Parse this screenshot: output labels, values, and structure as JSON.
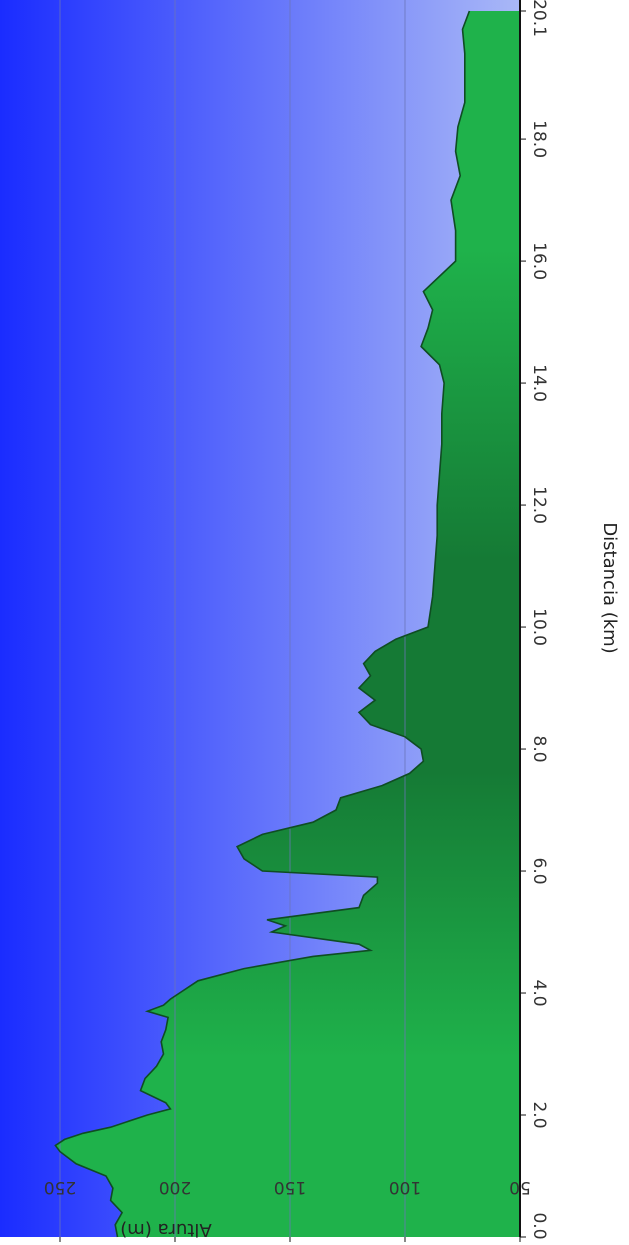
{
  "chart_data": {
    "type": "area",
    "orientation": "rotated-90-clockwise",
    "xlabel": "Distancia  (km)",
    "ylabel": "Altura (m)",
    "x_ticks": [
      "0.0",
      "2.0",
      "4.0",
      "6.0",
      "8.0",
      "10.0",
      "12.0",
      "14.0",
      "16.0",
      "18.0",
      "20.1"
    ],
    "y_ticks": [
      "50",
      "100",
      "150",
      "200",
      "250"
    ],
    "xlim": [
      0,
      20.1
    ],
    "ylim": [
      50,
      265
    ],
    "grid": true,
    "colors": {
      "sky_top": "#1a2cff",
      "sky_bottom": "#a9b8f7",
      "terrain_light": "#1fb24b",
      "terrain_dark": "#157a35",
      "outline": "#0f4d22",
      "grid": "#6a74b8"
    },
    "series": [
      {
        "x": [
          0.0,
          0.2,
          0.4,
          0.6,
          0.8,
          1.0,
          1.2,
          1.4,
          1.5,
          1.6,
          1.7,
          1.8,
          2.0,
          2.1,
          2.2,
          2.4,
          2.6,
          2.8,
          3.0,
          3.2,
          3.4,
          3.6,
          3.7,
          3.8,
          3.9,
          4.0,
          4.2,
          4.4,
          4.6,
          4.7,
          4.8,
          5.0,
          5.1,
          5.2,
          5.4,
          5.6,
          5.8,
          5.9,
          6.0,
          6.2,
          6.4,
          6.6,
          6.8,
          7.0,
          7.2,
          7.4,
          7.6,
          7.8,
          8.0,
          8.2,
          8.4,
          8.6,
          8.8,
          9.0,
          9.2,
          9.4,
          9.6,
          9.8,
          10.0,
          10.5,
          11.0,
          11.5,
          12.0,
          12.5,
          13.0,
          13.5,
          14.0,
          14.3,
          14.6,
          14.9,
          15.2,
          15.5,
          16.0,
          16.5,
          17.0,
          17.4,
          17.8,
          18.2,
          18.6,
          19.0,
          19.4,
          19.8,
          20.1
        ],
        "y": [
          225,
          226,
          223,
          228,
          227,
          230,
          243,
          250,
          252,
          248,
          240,
          228,
          212,
          202,
          204,
          215,
          213,
          208,
          205,
          206,
          204,
          203,
          212,
          205,
          202,
          198,
          190,
          170,
          140,
          115,
          120,
          158,
          152,
          160,
          120,
          118,
          112,
          112,
          162,
          170,
          173,
          162,
          140,
          130,
          128,
          110,
          98,
          92,
          93,
          100,
          115,
          120,
          113,
          120,
          115,
          118,
          113,
          104,
          90,
          88,
          87,
          86,
          86,
          85,
          84,
          84,
          83,
          85,
          93,
          90,
          88,
          92,
          78,
          78,
          80,
          76,
          78,
          77,
          74,
          74,
          74,
          75,
          72
        ]
      }
    ]
  }
}
